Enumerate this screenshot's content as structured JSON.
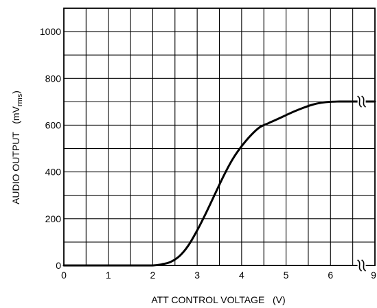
{
  "chart_data": {
    "type": "line",
    "title": "",
    "xlabel": "ATT CONTROL VOLTAGE   (V)",
    "ylabel_main": "AUDIO OUTPUT   (mV",
    "ylabel_sub": "rms",
    "ylabel_close": ")",
    "xlim": [
      0,
      7
    ],
    "ylim": [
      0,
      1100
    ],
    "x_ticks": [
      0,
      1,
      2,
      3,
      4,
      5,
      6
    ],
    "x_tick_labels": [
      "0",
      "1",
      "2",
      "3",
      "4",
      "5",
      "6"
    ],
    "x_end_label": "9",
    "y_ticks": [
      0,
      200,
      400,
      600,
      800,
      1000
    ],
    "y_tick_labels": [
      "0",
      "200",
      "400",
      "600",
      "800",
      "1000"
    ],
    "x_grid_step": 0.5,
    "y_grid_step": 100,
    "grid": true,
    "axis_break_on_x": true,
    "series": [
      {
        "x": [
          0,
          0.5,
          1.0,
          1.5,
          2.0,
          2.2,
          2.4,
          2.6,
          2.8,
          3.0,
          3.2,
          3.4,
          3.6,
          3.8,
          4.0,
          4.2,
          4.4,
          4.6,
          4.8,
          5.0,
          5.2,
          5.4,
          5.6,
          5.8,
          6.0,
          6.2,
          6.4,
          6.6,
          6.7,
          7.0
        ],
        "values": [
          0,
          0,
          0,
          0,
          0,
          5,
          15,
          40,
          85,
          150,
          225,
          305,
          385,
          455,
          510,
          555,
          590,
          608,
          625,
          643,
          660,
          675,
          688,
          696,
          700,
          701,
          701,
          701,
          701,
          701
        ]
      }
    ]
  }
}
